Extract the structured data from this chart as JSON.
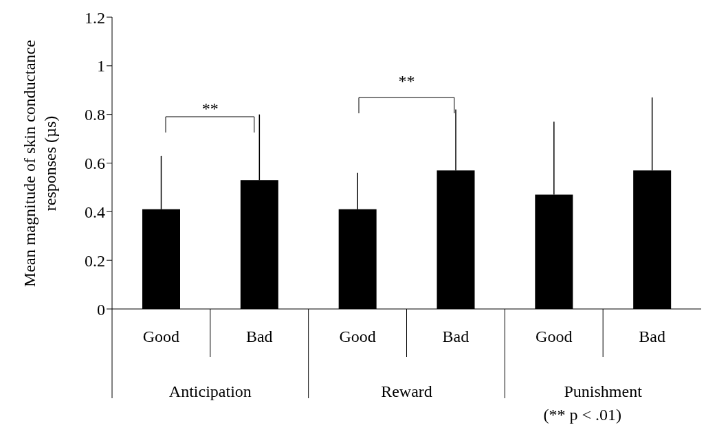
{
  "chart_data": {
    "type": "bar",
    "ylabel": "Mean magnitude of skin conductance responses (µs)",
    "categories": [
      "Good",
      "Bad",
      "Good",
      "Bad",
      "Good",
      "Bad"
    ],
    "series": [
      {
        "color": "#000000",
        "values": [
          0.41,
          0.53,
          0.41,
          0.57,
          0.47,
          0.57
        ],
        "errors": [
          [
            0.41,
            0.63
          ],
          [
            0.53,
            0.8
          ],
          [
            0.41,
            0.56
          ],
          [
            0.57,
            0.82
          ],
          [
            0.47,
            0.77
          ],
          [
            0.57,
            0.87
          ]
        ]
      }
    ],
    "ylim": [
      0,
      1.2
    ],
    "yticks": [
      0,
      0.2,
      0.4,
      0.6,
      0.8,
      1,
      1.2
    ],
    "annotations": [
      "**",
      "**",
      "Anticipation",
      "Reward",
      "Punishment",
      "(** p < .01)"
    ]
  }
}
